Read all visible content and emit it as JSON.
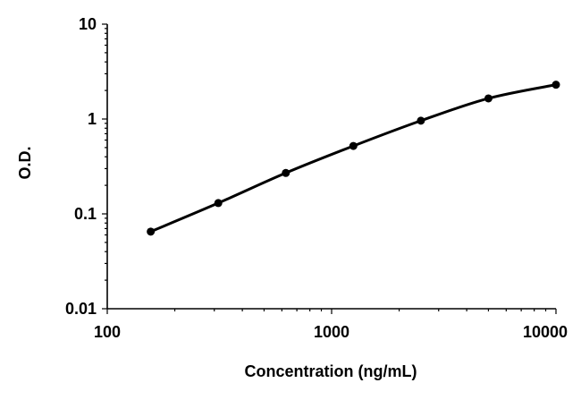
{
  "chart_data": {
    "type": "line",
    "title": "",
    "xlabel": "Concentration (ng/mL)",
    "ylabel": "O.D.",
    "x_scale": "log",
    "y_scale": "log",
    "xlim": [
      100,
      10000
    ],
    "ylim": [
      0.01,
      10
    ],
    "x_ticks": [
      {
        "value": 100,
        "label": "100"
      },
      {
        "value": 1000,
        "label": "1000"
      },
      {
        "value": 10000,
        "label": "10000"
      }
    ],
    "y_ticks": [
      {
        "value": 0.01,
        "label": "0.01"
      },
      {
        "value": 0.1,
        "label": "0.1"
      },
      {
        "value": 1,
        "label": "1"
      },
      {
        "value": 10,
        "label": "10"
      }
    ],
    "grid": false,
    "legend": "none",
    "series": [
      {
        "x": [
          156.25,
          312.5,
          625,
          1250,
          2500,
          5000,
          10000
        ],
        "y": [
          0.065,
          0.13,
          0.27,
          0.52,
          0.96,
          1.65,
          2.3
        ],
        "color": "#000000",
        "marker": "circle",
        "line": "smooth"
      }
    ]
  }
}
